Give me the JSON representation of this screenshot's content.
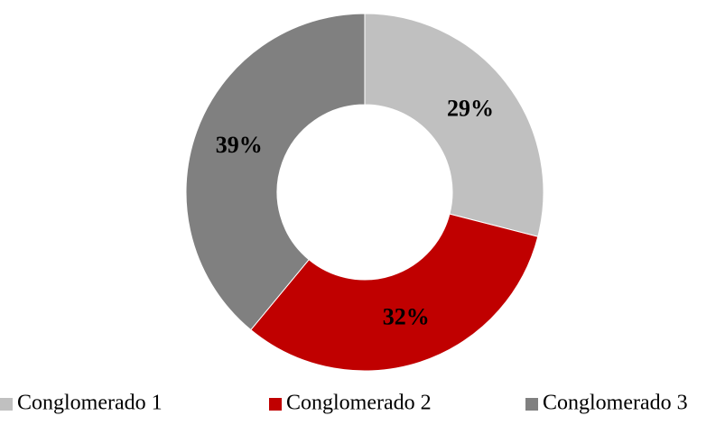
{
  "chart_data": {
    "type": "donut",
    "categories": [
      "Conglomerado 1",
      "Conglomerado 2",
      "Conglomerado 3"
    ],
    "values": [
      29,
      32,
      39
    ],
    "value_labels": [
      "29%",
      "32%",
      "39%"
    ],
    "colors": [
      "#c0c0c0",
      "#c00000",
      "#808080"
    ],
    "legend": "bottom"
  }
}
